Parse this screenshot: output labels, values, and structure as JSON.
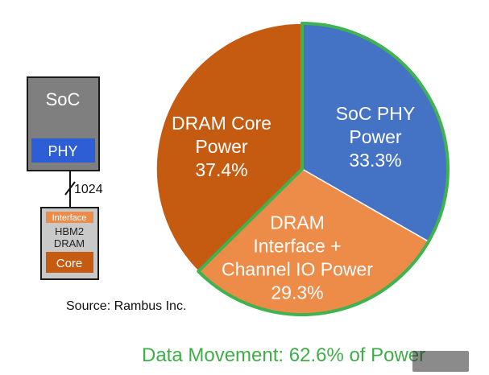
{
  "diagram": {
    "soc_label": "SoC",
    "phy_label": "PHY",
    "bus_width": "1024",
    "interface_label": "Interface",
    "hbm_line1": "HBM2",
    "hbm_line2": "DRAM",
    "core_label": "Core"
  },
  "source": "Source: Rambus Inc.",
  "footer": "Data Movement: 62.6% of Power",
  "colors": {
    "soc_phy": "#4472c4",
    "dram_interface": "#ed8b48",
    "dram_core": "#c55a11",
    "highlight_border": "#3fb34f",
    "soc_box": "#7f7f7f"
  },
  "chart_data": {
    "type": "pie",
    "slices": [
      {
        "label_lines": [
          "SoC PHY",
          "Power"
        ],
        "value": 33.3,
        "display": "33.3%",
        "color": "#4472c4"
      },
      {
        "label_lines": [
          "DRAM",
          "Interface +",
          "Channel IO Power"
        ],
        "value": 29.3,
        "display": "29.3%",
        "color": "#ed8b48"
      },
      {
        "label_lines": [
          "DRAM Core",
          "Power"
        ],
        "value": 37.4,
        "display": "37.4%",
        "color": "#c55a11"
      }
    ],
    "highlighted": [
      0,
      1
    ],
    "start": "12 o'clock",
    "direction": "clockwise"
  }
}
